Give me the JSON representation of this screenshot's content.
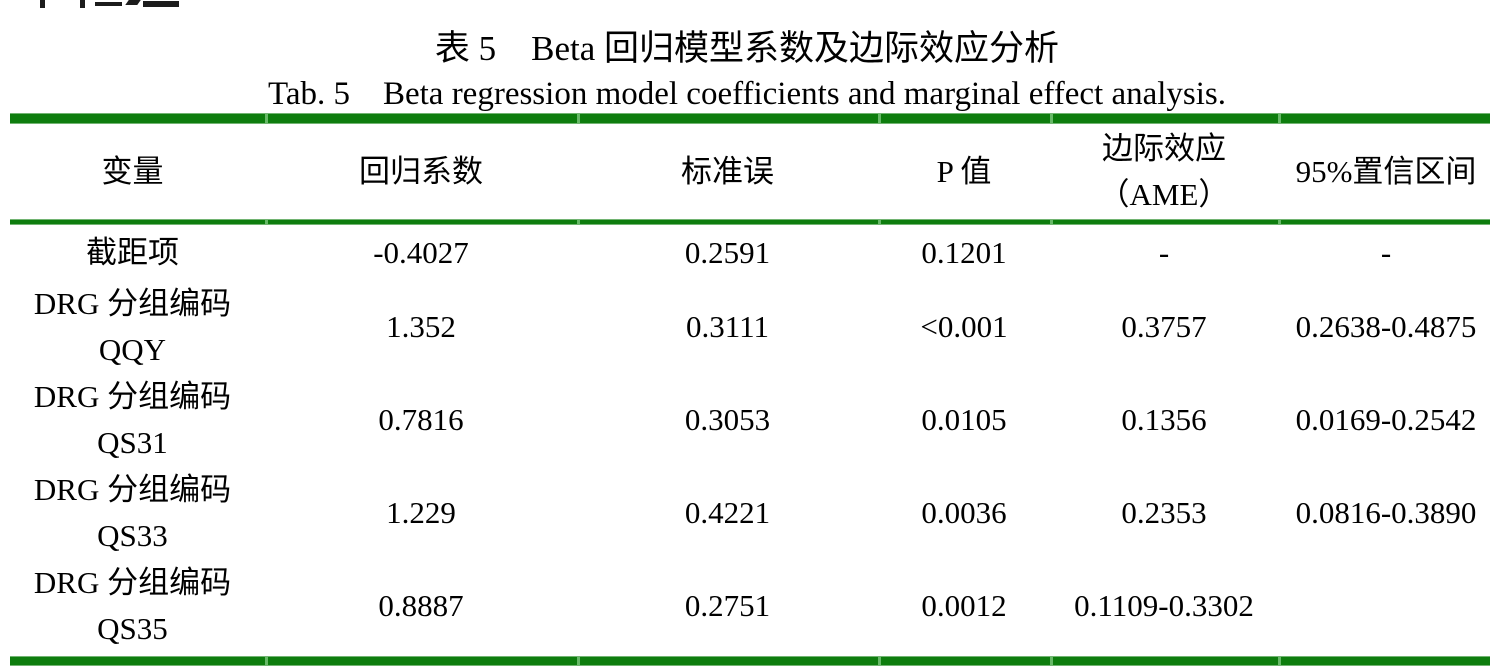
{
  "caption": {
    "zh": "表 5　Beta 回归模型系数及边际效应分析",
    "en": "Tab. 5　Beta regression model coefficients and marginal effect analysis."
  },
  "table": {
    "headers": [
      {
        "line1": "变量",
        "line2": ""
      },
      {
        "line1": "回归系数",
        "line2": ""
      },
      {
        "line1": "标准误",
        "line2": ""
      },
      {
        "line1": "P 值",
        "line2": ""
      },
      {
        "line1": "边际效应",
        "line2": "（AME）"
      },
      {
        "line1": "95%置信区间",
        "line2": ""
      }
    ],
    "rows": [
      {
        "var1": "截距项",
        "var2": "",
        "coef": "-0.4027",
        "se": "0.2591",
        "p": "0.1201",
        "ame": "-",
        "ci": "-"
      },
      {
        "var1": "DRG 分组编码",
        "var2": "QQY",
        "coef": "1.352",
        "se": "0.3111",
        "p": "<0.001",
        "ame": "0.3757",
        "ci": "0.2638-0.4875"
      },
      {
        "var1": "DRG 分组编码",
        "var2": "QS31",
        "coef": "0.7816",
        "se": "0.3053",
        "p": "0.0105",
        "ame": "0.1356",
        "ci": "0.0169-0.2542"
      },
      {
        "var1": "DRG 分组编码",
        "var2": "QS33",
        "coef": "1.229",
        "se": "0.4221",
        "p": "0.0036",
        "ame": "0.2353",
        "ci": "0.0816-0.3890"
      },
      {
        "var1": "DRG 分组编码",
        "var2": "QS35",
        "coef": "0.8887",
        "se": "0.2751",
        "p": "0.0012",
        "ame": "0.1109-0.3302",
        "ci": ""
      }
    ]
  },
  "style": {
    "rule_green": "#0e7d0e",
    "rule_edge_green": "#72b472",
    "text_color": "#000000"
  }
}
